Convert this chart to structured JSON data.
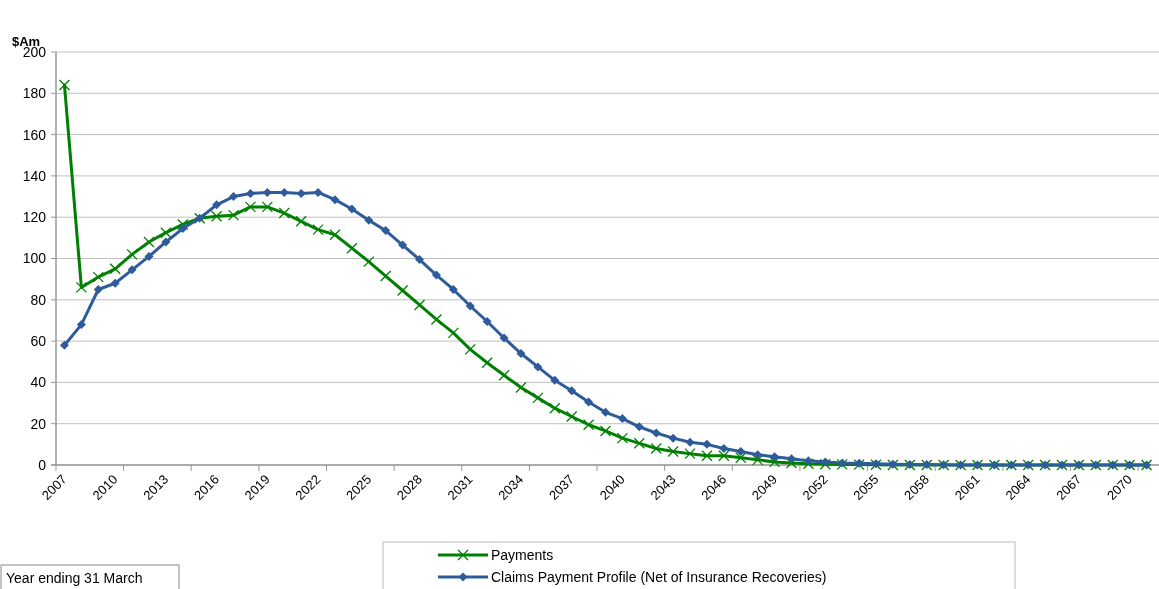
{
  "chart_data": {
    "type": "line",
    "ylabel": "$Am",
    "categories": [
      "2007",
      null,
      null,
      "2010",
      null,
      null,
      "2013",
      null,
      null,
      "2016",
      null,
      null,
      "2019",
      null,
      null,
      "2022",
      null,
      null,
      "2025",
      null,
      null,
      "2028",
      null,
      null,
      "2031",
      null,
      null,
      "2034",
      null,
      null,
      "2037",
      null,
      null,
      "2040",
      null,
      null,
      "2043",
      null,
      null,
      "2046",
      null,
      null,
      "2049",
      null,
      null,
      "2052",
      null,
      null,
      "2055",
      null,
      null,
      "2058",
      null,
      null,
      "2061",
      null,
      null,
      "2064",
      null,
      null,
      "2067",
      null,
      null,
      "2070",
      null
    ],
    "series": [
      {
        "name": "Payments",
        "color": "#008000",
        "marker": "cross",
        "values": [
          184,
          86,
          91,
          95,
          102,
          108,
          112.5,
          116.5,
          119.5,
          120.5,
          121,
          125,
          125,
          122,
          118,
          114,
          111.5,
          105,
          98.5,
          91.5,
          84.5,
          77.5,
          70.5,
          64,
          56,
          49.5,
          43.5,
          37.5,
          32.5,
          27.5,
          23.5,
          19.5,
          16.5,
          13,
          10.5,
          8,
          6.5,
          5.5,
          4.5,
          4.5,
          3.5,
          2.5,
          1.5,
          1,
          0.6,
          0.4,
          0.3,
          0.2,
          0.1,
          0,
          0,
          0,
          0,
          0,
          0,
          0,
          0,
          0,
          0,
          0,
          0,
          0,
          0,
          0,
          0
        ]
      },
      {
        "name": "Claims Payment Profile (Net of Insurance Recoveries)",
        "color": "#2e5c9a",
        "marker": "diamond",
        "values": [
          58,
          68,
          85,
          88,
          94.5,
          101,
          108,
          114.5,
          119.5,
          126,
          130,
          131.5,
          132,
          132,
          131.5,
          132,
          128.5,
          124,
          118.5,
          113.5,
          106.5,
          99.5,
          92,
          85,
          77,
          69.5,
          61.5,
          54,
          47.5,
          41,
          36,
          30.5,
          25.5,
          22.5,
          18.5,
          15.5,
          13,
          11,
          10,
          8,
          6.5,
          5,
          4,
          3,
          2,
          1.5,
          1,
          0.8,
          0.6,
          0.4,
          0.3,
          0.2,
          0.1,
          0,
          0,
          0,
          0,
          0,
          0,
          0,
          0,
          0,
          0,
          0,
          0
        ]
      }
    ],
    "ylim": [
      0,
      200
    ],
    "yticks": [
      0,
      20,
      40,
      60,
      80,
      100,
      120,
      140,
      160,
      180,
      200
    ],
    "grid": "y",
    "legend": "bottom",
    "annotations": [
      "Year ending 31 March"
    ]
  }
}
